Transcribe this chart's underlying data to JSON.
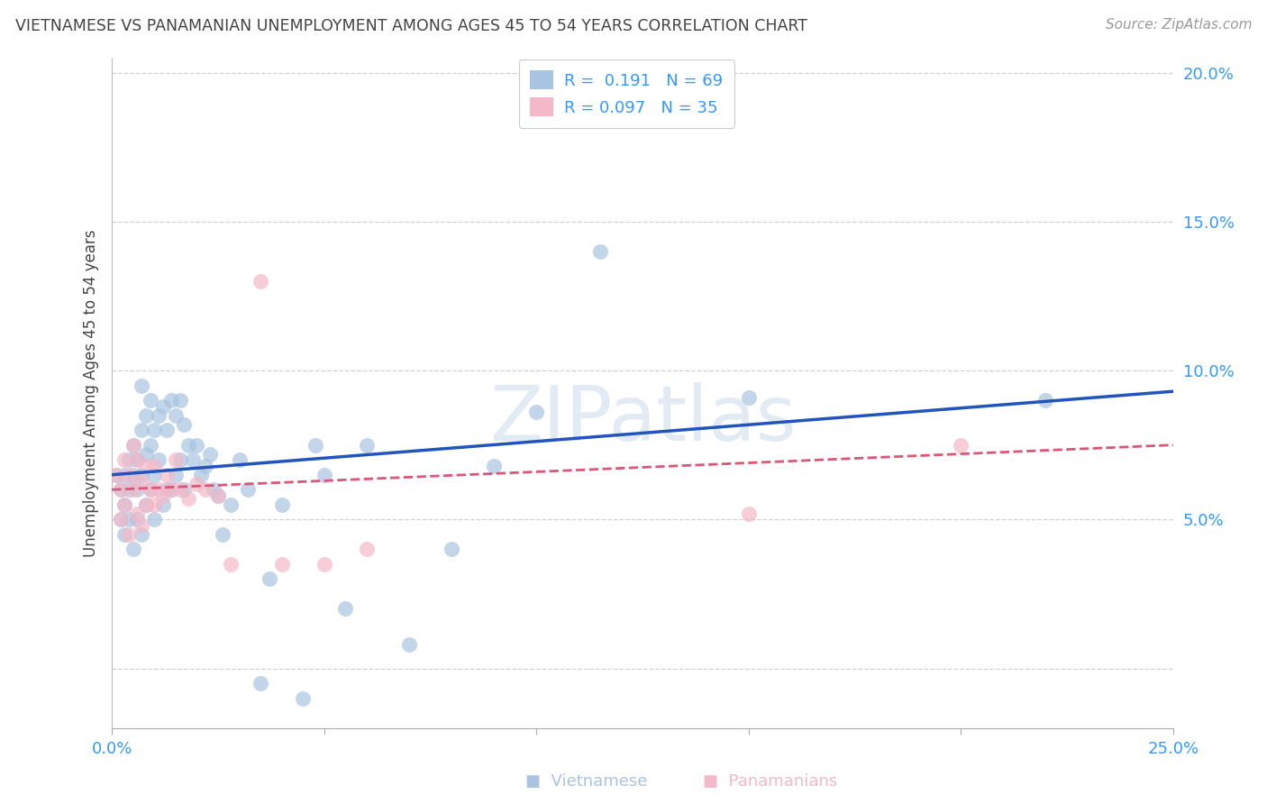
{
  "title": "VIETNAMESE VS PANAMANIAN UNEMPLOYMENT AMONG AGES 45 TO 54 YEARS CORRELATION CHART",
  "source": "Source: ZipAtlas.com",
  "ylabel": "Unemployment Among Ages 45 to 54 years",
  "xlim": [
    0.0,
    0.25
  ],
  "ylim": [
    -0.02,
    0.205
  ],
  "xticks": [
    0.0,
    0.05,
    0.1,
    0.15,
    0.2,
    0.25
  ],
  "yticks": [
    0.0,
    0.05,
    0.1,
    0.15,
    0.2
  ],
  "watermark": "ZIPatlas",
  "r1": "0.191",
  "n1": "69",
  "r2": "0.097",
  "n2": "35",
  "viet_color": "#a8c4e0",
  "pana_color": "#f4b8c8",
  "trend_blue": "#2255bb",
  "trend_pink": "#dd5577",
  "background": "#ffffff",
  "grid_color": "#cccccc",
  "title_color": "#444444",
  "axis_tick_color": "#3399ff",
  "viet_x": [
    0.001,
    0.002,
    0.002,
    0.003,
    0.003,
    0.003,
    0.004,
    0.004,
    0.004,
    0.005,
    0.005,
    0.005,
    0.006,
    0.006,
    0.006,
    0.007,
    0.007,
    0.007,
    0.007,
    0.008,
    0.008,
    0.008,
    0.009,
    0.009,
    0.009,
    0.01,
    0.01,
    0.01,
    0.011,
    0.011,
    0.012,
    0.012,
    0.013,
    0.013,
    0.014,
    0.014,
    0.015,
    0.015,
    0.016,
    0.016,
    0.017,
    0.017,
    0.018,
    0.019,
    0.02,
    0.021,
    0.022,
    0.023,
    0.024,
    0.025,
    0.026,
    0.028,
    0.03,
    0.032,
    0.035,
    0.037,
    0.04,
    0.045,
    0.048,
    0.05,
    0.055,
    0.06,
    0.07,
    0.08,
    0.09,
    0.1,
    0.115,
    0.15,
    0.22
  ],
  "viet_y": [
    0.065,
    0.06,
    0.05,
    0.065,
    0.055,
    0.045,
    0.07,
    0.06,
    0.05,
    0.075,
    0.065,
    0.04,
    0.07,
    0.06,
    0.05,
    0.095,
    0.08,
    0.065,
    0.045,
    0.085,
    0.072,
    0.055,
    0.09,
    0.075,
    0.06,
    0.08,
    0.065,
    0.05,
    0.085,
    0.07,
    0.088,
    0.055,
    0.08,
    0.06,
    0.09,
    0.06,
    0.085,
    0.065,
    0.09,
    0.07,
    0.082,
    0.06,
    0.075,
    0.07,
    0.075,
    0.065,
    0.068,
    0.072,
    0.06,
    0.058,
    0.045,
    0.055,
    0.07,
    0.06,
    -0.005,
    0.03,
    0.055,
    -0.01,
    0.075,
    0.065,
    0.02,
    0.075,
    0.008,
    0.04,
    0.068,
    0.086,
    0.14,
    0.091,
    0.09
  ],
  "pana_x": [
    0.001,
    0.002,
    0.002,
    0.003,
    0.003,
    0.004,
    0.004,
    0.005,
    0.005,
    0.006,
    0.006,
    0.007,
    0.007,
    0.008,
    0.008,
    0.009,
    0.01,
    0.01,
    0.011,
    0.012,
    0.013,
    0.014,
    0.015,
    0.016,
    0.018,
    0.02,
    0.022,
    0.025,
    0.028,
    0.035,
    0.04,
    0.05,
    0.06,
    0.15,
    0.2
  ],
  "pana_y": [
    0.065,
    0.06,
    0.05,
    0.07,
    0.055,
    0.065,
    0.045,
    0.075,
    0.06,
    0.07,
    0.052,
    0.063,
    0.048,
    0.068,
    0.055,
    0.06,
    0.068,
    0.055,
    0.06,
    0.058,
    0.065,
    0.06,
    0.07,
    0.06,
    0.057,
    0.062,
    0.06,
    0.058,
    0.035,
    0.13,
    0.035,
    0.035,
    0.04,
    0.052,
    0.075
  ],
  "trend_viet_x0": 0.0,
  "trend_viet_y0": 0.065,
  "trend_viet_x1": 0.25,
  "trend_viet_y1": 0.093,
  "trend_pana_x0": 0.0,
  "trend_pana_y0": 0.06,
  "trend_pana_x1": 0.25,
  "trend_pana_y1": 0.075
}
